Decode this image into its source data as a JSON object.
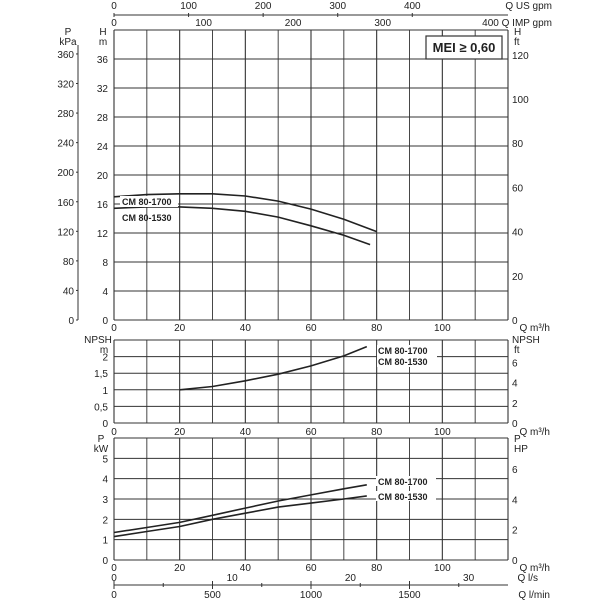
{
  "chart_data": [
    {
      "type": "line",
      "title": "Head vs Flow",
      "xlabel": "Q m³/h",
      "ylabel": "H m",
      "ylabel_secondary_left": "P kPa",
      "ylabel_right": "H ft",
      "xlim": [
        0,
        110
      ],
      "ylim": [
        0,
        40
      ],
      "grid": true,
      "x_ticks": [
        0,
        20,
        40,
        60,
        80,
        100
      ],
      "y_ticks_m": [
        0,
        4,
        8,
        12,
        16,
        20,
        24,
        28,
        32,
        36
      ],
      "y_ticks_kpa": [
        0,
        40,
        80,
        120,
        160,
        200,
        240,
        280,
        320,
        360
      ],
      "y_ticks_ft": [
        0,
        20,
        40,
        60,
        80,
        100,
        120
      ],
      "annotation": "MEI ≥ 0,60",
      "series": [
        {
          "name": "CM 80-1700",
          "x": [
            0,
            10,
            20,
            30,
            40,
            50,
            60,
            70,
            80
          ],
          "values": [
            17.0,
            17.3,
            17.4,
            17.4,
            17.1,
            16.4,
            15.3,
            13.9,
            12.2
          ]
        },
        {
          "name": "CM 80-1530",
          "x": [
            0,
            10,
            20,
            30,
            40,
            50,
            60,
            70,
            78
          ],
          "values": [
            15.4,
            15.6,
            15.6,
            15.4,
            15.0,
            14.2,
            13.0,
            11.7,
            10.4
          ]
        }
      ]
    },
    {
      "type": "line",
      "title": "NPSH vs Flow",
      "xlabel": "Q m³/h",
      "ylabel": "NPSH m",
      "ylabel_right": "NPSH ft",
      "xlim": [
        0,
        110
      ],
      "ylim": [
        0,
        2.5
      ],
      "grid": true,
      "x_ticks": [
        0,
        20,
        40,
        60,
        80,
        100
      ],
      "y_ticks_m": [
        0,
        0.5,
        1,
        1.5,
        2
      ],
      "y_ticks_ft": [
        0,
        2,
        4,
        6
      ],
      "series": [
        {
          "name": "CM 80-1700 / CM 80-1530",
          "x": [
            20,
            30,
            40,
            50,
            60,
            70,
            77
          ],
          "values": [
            1.0,
            1.1,
            1.27,
            1.47,
            1.72,
            2.02,
            2.3
          ]
        }
      ]
    },
    {
      "type": "line",
      "title": "Power vs Flow",
      "xlabel": "Q m³/h",
      "ylabel": "P kW",
      "ylabel_right": "P HP",
      "xlim": [
        0,
        110
      ],
      "ylim": [
        0,
        6
      ],
      "grid": true,
      "x_ticks": [
        0,
        20,
        40,
        60,
        80,
        100
      ],
      "y_ticks_kw": [
        0,
        1,
        2,
        3,
        4,
        5
      ],
      "y_ticks_hp": [
        0,
        2,
        4,
        6
      ],
      "series": [
        {
          "name": "CM 80-1700",
          "x": [
            0,
            10,
            20,
            30,
            40,
            50,
            60,
            70,
            77
          ],
          "values": [
            1.35,
            1.6,
            1.85,
            2.2,
            2.55,
            2.9,
            3.2,
            3.5,
            3.7
          ]
        },
        {
          "name": "CM 80-1530",
          "x": [
            0,
            10,
            20,
            30,
            40,
            50,
            60,
            70,
            77
          ],
          "values": [
            1.15,
            1.4,
            1.65,
            2.0,
            2.3,
            2.6,
            2.8,
            3.0,
            3.15
          ]
        }
      ]
    }
  ],
  "top_axes": {
    "us_gpm": {
      "label": "Q US gpm",
      "ticks": [
        0,
        100,
        200,
        300,
        400
      ]
    },
    "imp_gpm": {
      "label": "Q IMP gpm",
      "ticks": [
        0,
        100,
        200,
        300,
        400
      ]
    }
  },
  "bottom_axes": {
    "m3h": {
      "label": "Q m³/h",
      "ticks": [
        0,
        20,
        40,
        60,
        80,
        100
      ]
    },
    "ls": {
      "label": "Q l/s",
      "ticks": [
        0,
        10,
        20,
        30
      ]
    },
    "lmin": {
      "label": "Q l/min",
      "ticks": [
        0,
        500,
        1000,
        1500
      ]
    }
  },
  "labels": {
    "p": "P",
    "kpa": "kPa",
    "h": "H",
    "m": "m",
    "ft": "ft",
    "npsh": "NPSH",
    "kw": "kW",
    "hp": "HP",
    "q_m3h": "Q m³/h",
    "q_us": "Q US gpm",
    "q_imp": "Q IMP gpm",
    "q_ls": "Q l/s",
    "q_lmin": "Q l/min",
    "mei": "MEI ≥ 0,60",
    "cm1700": "CM 80-1700",
    "cm1530": "CM 80-1530"
  },
  "colors": {
    "grid": "#333333",
    "curve": "#222222",
    "text": "#222222"
  }
}
